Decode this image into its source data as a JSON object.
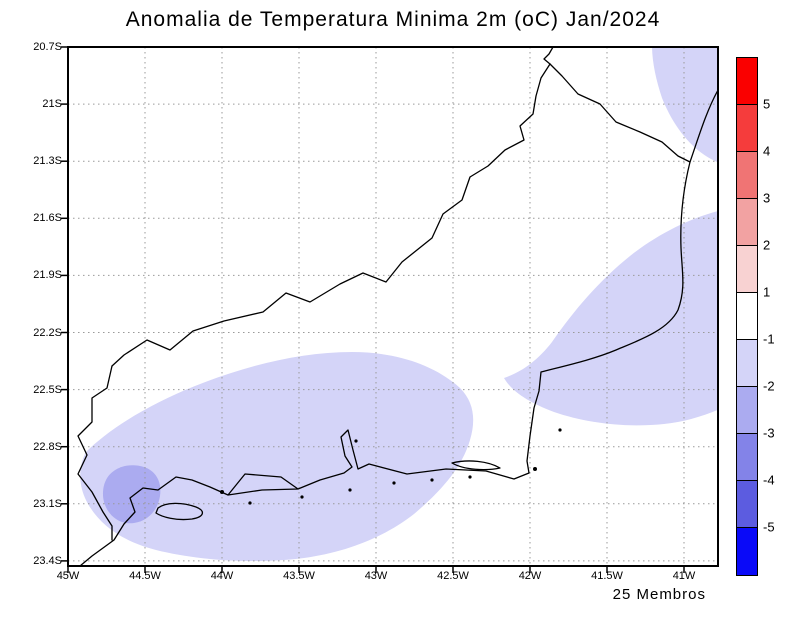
{
  "title": "Anomalia de Temperatura Minima 2m (oC) Jan/2024",
  "footer": {
    "members_label": "25 Membros"
  },
  "chart_data": {
    "type": "heatmap",
    "subtype": "filled-contour-anomaly-map",
    "title": "Anomalia de Temperatura Minima 2m (oC) Jan/2024",
    "variable": "Minimum 2m temperature anomaly (oC)",
    "period": "Jan/2024",
    "x_axis": {
      "ticks": [
        "45W",
        "44.5W",
        "44W",
        "43.5W",
        "43W",
        "42.5W",
        "42W",
        "41.5W",
        "41W"
      ],
      "range_deg_west": [
        45.0,
        40.8
      ]
    },
    "y_axis": {
      "ticks": [
        "20.7S",
        "21S",
        "21.3S",
        "21.6S",
        "21.9S",
        "22.2S",
        "22.5S",
        "22.8S",
        "23.1S",
        "23.4S"
      ],
      "range_deg_south": [
        20.7,
        23.42
      ]
    },
    "grid": "dotted",
    "legend_position": "right",
    "colorbar": {
      "tick_labels": [
        "5",
        "4",
        "3",
        "2",
        "1",
        "-1",
        "-2",
        "-3",
        "-4",
        "-5"
      ],
      "colors": [
        "#fa0000",
        "#f53c3c",
        "#f07474",
        "#f2a2a2",
        "#f8d2d2",
        "#ffffff",
        "#d4d4f8",
        "#ababf0",
        "#8383e8",
        "#5c5ce0",
        "#0a0af8"
      ],
      "units": "oC"
    },
    "anomaly_regions": [
      {
        "name": "southwest-coastal-blob",
        "value_range": "-1 to -2",
        "approx_extent": "44.9W to 42.6W, 22.4S to 23.4S"
      },
      {
        "name": "east-offshore-blob",
        "value_range": "-1 to -2",
        "approx_extent": "42.2W to 40.8W, 21.55S to 22.6S"
      },
      {
        "name": "northeast-corner-band",
        "value_range": "-1 to -2",
        "approx_extent": "41.2W to 40.8W, 20.7S to 21.3S"
      },
      {
        "name": "ilha-grande-patch",
        "value_range": "-2 to -3",
        "approx_extent": "44.8W to 44.4W, 22.95S to 23.25S"
      }
    ],
    "ensemble_note": "25 Membros"
  }
}
